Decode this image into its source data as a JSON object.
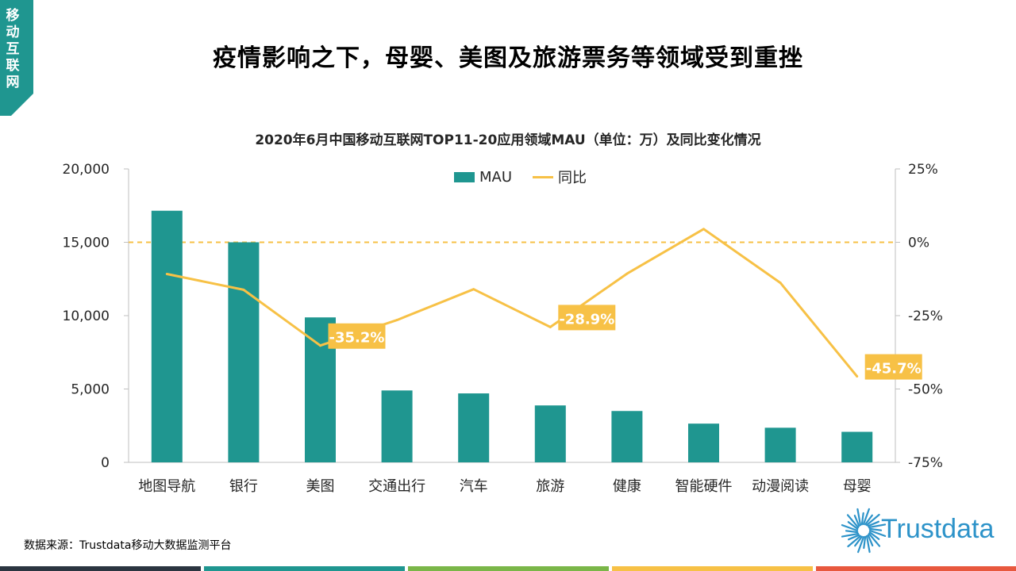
{
  "corner_label": [
    "移",
    "动",
    "互",
    "联",
    "网"
  ],
  "headline": "疫情影响之下，母婴、美图及旅游票务等领域受到重挫",
  "source": "数据来源：Trustdata移动大数据监测平台",
  "brand": "Trustdata",
  "colors": {
    "teal": "#1f9690",
    "gold": "#f7c146",
    "logo_blue": "#2d93c9"
  },
  "footer_stripes": [
    "#2b3540",
    "#1f9690",
    "#7ab648",
    "#f7c146",
    "#e8583e"
  ],
  "chart_data": {
    "type": "bar+line",
    "title": "2020年6月中国移动互联网TOP11-20应用领域MAU（单位：万）及同比变化情况",
    "categories": [
      "地图导航",
      "银行",
      "美图",
      "交通出行",
      "汽车",
      "旅游",
      "健康",
      "智能硬件",
      "动漫阅读",
      "母婴"
    ],
    "series": [
      {
        "name": "MAU",
        "type": "bar",
        "axis": "left",
        "values": [
          17150,
          15000,
          9880,
          4900,
          4700,
          3880,
          3500,
          2640,
          2360,
          2080
        ]
      },
      {
        "name": "同比",
        "type": "line",
        "axis": "right",
        "values": [
          -10.8,
          -16.2,
          -35.2,
          -26.5,
          -16.0,
          -28.9,
          -10.7,
          4.5,
          -13.8,
          -45.7
        ]
      }
    ],
    "y_left": {
      "min": 0,
      "max": 20000,
      "ticks": [
        0,
        5000,
        10000,
        15000,
        20000
      ],
      "tick_labels": [
        "0",
        "5,000",
        "10,000",
        "15,000",
        "20,000"
      ]
    },
    "y_right": {
      "min": -75,
      "max": 25,
      "ticks": [
        -75,
        -50,
        -25,
        0,
        25
      ],
      "tick_labels": [
        "-75%",
        "-50%",
        "-25%",
        "0%",
        "25%"
      ]
    },
    "reference_line": {
      "axis": "right",
      "value": 0,
      "style": "dashed"
    },
    "annotations": [
      {
        "category_index": 2,
        "text": "-35.2%"
      },
      {
        "category_index": 5,
        "text": "-28.9%"
      },
      {
        "category_index": 9,
        "text": "-45.7%"
      }
    ],
    "legend": {
      "position": "top-center",
      "labels": [
        "MAU",
        "同比"
      ]
    },
    "grid": false
  }
}
